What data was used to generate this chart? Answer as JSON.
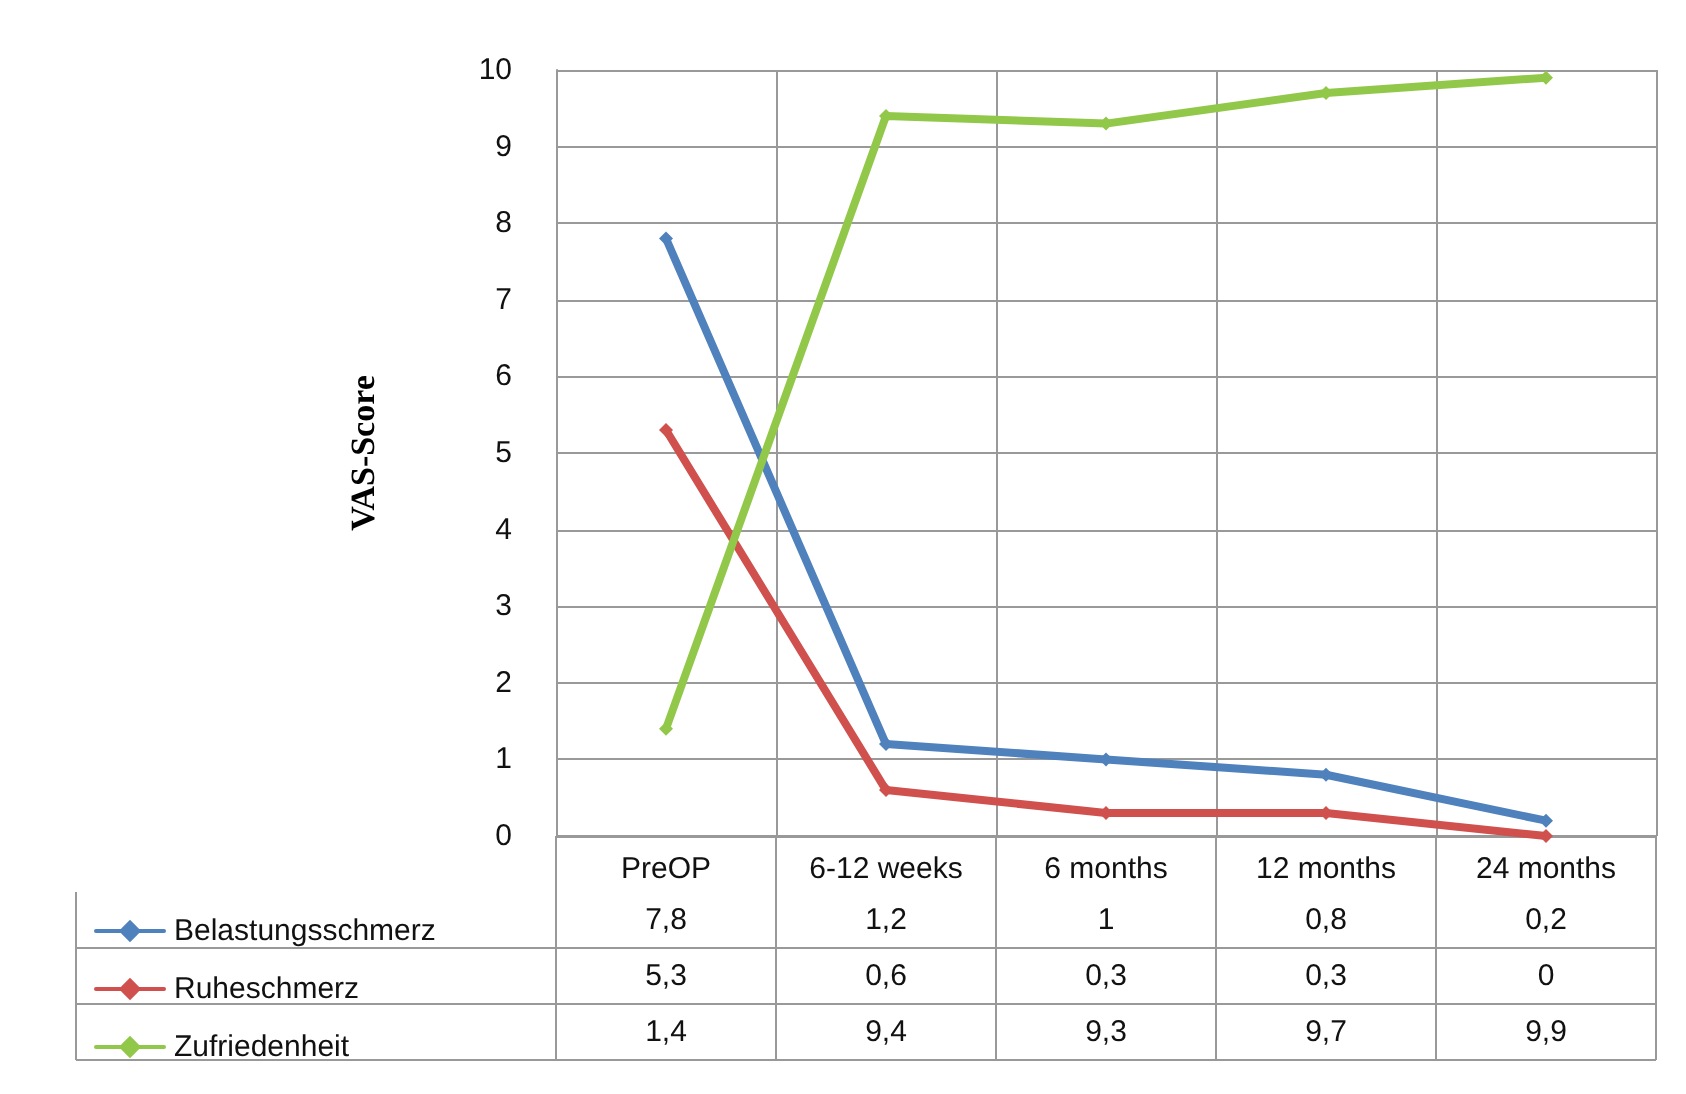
{
  "chart_data": {
    "type": "line",
    "ylabel": "VAS-Score",
    "categories": [
      "PreOP",
      "6-12 weeks",
      "6 months",
      "12 months",
      "24 months"
    ],
    "series": [
      {
        "name": "Belastungsschmerz",
        "color": "#4f81bd",
        "values": [
          7.8,
          1.2,
          1,
          0.8,
          0.2
        ],
        "value_labels": [
          "7,8",
          "1,2",
          "1",
          "0,8",
          "0,2"
        ]
      },
      {
        "name": "Ruheschmerz",
        "color": "#d0504d",
        "values": [
          5.3,
          0.6,
          0.3,
          0.3,
          0
        ],
        "value_labels": [
          "5,3",
          "0,6",
          "0,3",
          "0,3",
          "0"
        ]
      },
      {
        "name": "Zufriedenheit",
        "color": "#92c84a",
        "values": [
          1.4,
          9.4,
          9.3,
          9.7,
          9.9
        ],
        "value_labels": [
          "1,4",
          "9,4",
          "9,3",
          "9,7",
          "9,9"
        ]
      }
    ],
    "ylim": [
      0,
      10
    ],
    "yticks": [
      0,
      1,
      2,
      3,
      4,
      5,
      6,
      7,
      8,
      9,
      10
    ],
    "grid": true,
    "legend": "bottom left",
    "marker": "diamond",
    "line_style": "solid"
  }
}
